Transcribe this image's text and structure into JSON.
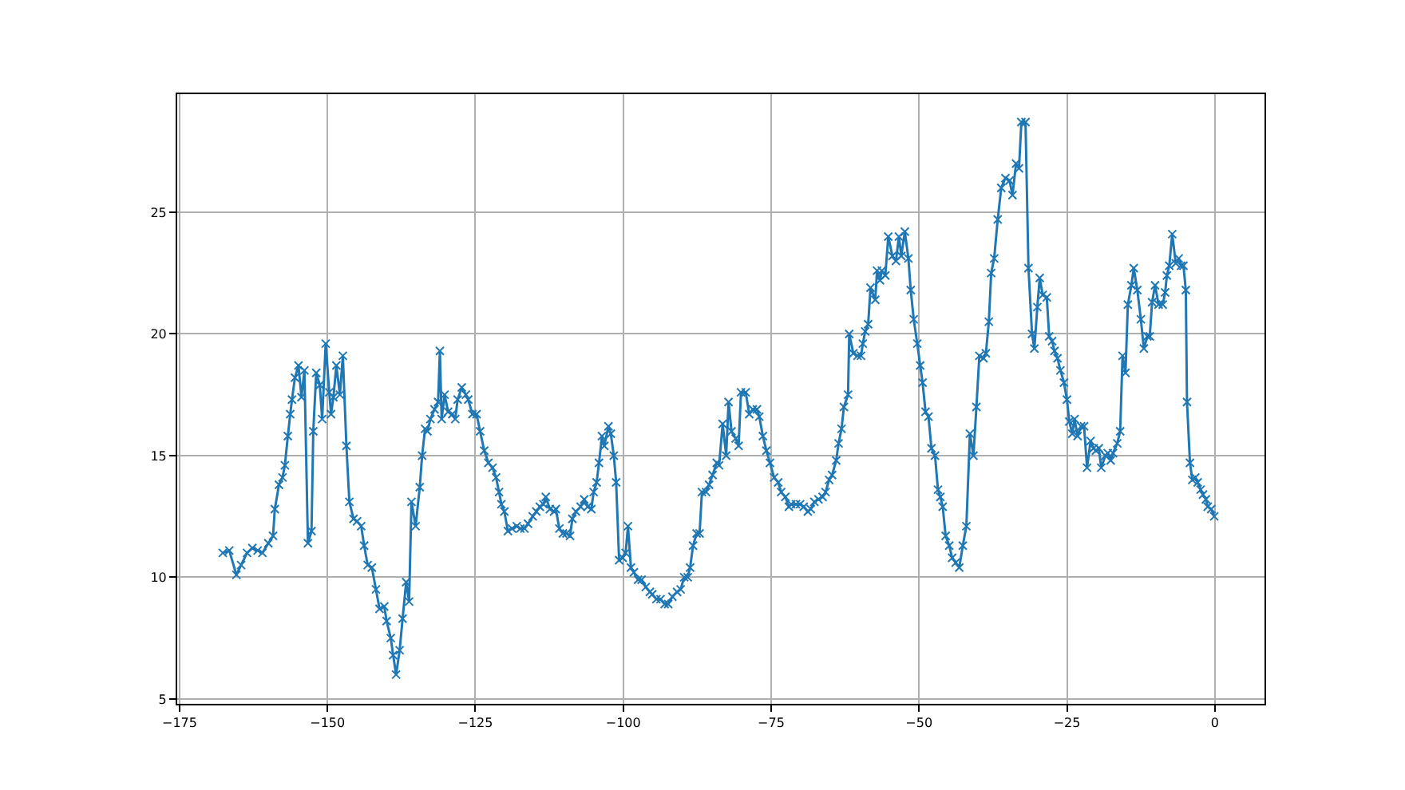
{
  "chart_data": {
    "type": "line",
    "x": [
      -167.7,
      -166.6,
      -165.4,
      -164.6,
      -163.6,
      -162.7,
      -161.8,
      -161.0,
      -160.0,
      -159.2,
      -158.9,
      -158.2,
      -157.6,
      -157.2,
      -156.7,
      -156.3,
      -156.0,
      -155.5,
      -154.9,
      -154.4,
      -153.9,
      -153.3,
      -152.7,
      -152.4,
      -151.9,
      -151.3,
      -150.9,
      -150.3,
      -149.7,
      -149.4,
      -149.0,
      -148.5,
      -147.9,
      -147.4,
      -146.8,
      -146.3,
      -145.6,
      -145.0,
      -144.3,
      -143.8,
      -143.2,
      -142.5,
      -141.8,
      -141.2,
      -140.4,
      -140.0,
      -139.3,
      -138.9,
      -138.4,
      -137.8,
      -137.3,
      -136.7,
      -136.2,
      -135.8,
      -135.1,
      -134.4,
      -134.0,
      -133.5,
      -133.1,
      -132.6,
      -131.9,
      -131.3,
      -131.0,
      -130.7,
      -130.2,
      -129.6,
      -128.9,
      -128.4,
      -128.0,
      -127.3,
      -126.6,
      -126.2,
      -125.5,
      -124.8,
      -124.2,
      -123.5,
      -122.8,
      -122.1,
      -121.5,
      -121.0,
      -120.6,
      -120.1,
      -119.5,
      -118.8,
      -118.0,
      -117.4,
      -116.7,
      -116.1,
      -115.3,
      -114.7,
      -114.1,
      -113.5,
      -113.1,
      -112.4,
      -111.7,
      -111.4,
      -110.8,
      -110.2,
      -109.6,
      -109.0,
      -108.6,
      -108.0,
      -107.2,
      -106.6,
      -106.0,
      -105.4,
      -105.0,
      -104.5,
      -104.1,
      -103.6,
      -103.2,
      -102.5,
      -102.1,
      -101.6,
      -101.2,
      -100.7,
      -100.1,
      -99.6,
      -99.2,
      -98.7,
      -98.2,
      -97.5,
      -96.9,
      -96.2,
      -95.5,
      -95.1,
      -94.4,
      -93.7,
      -93.0,
      -92.4,
      -91.7,
      -90.9,
      -90.3,
      -89.7,
      -89.1,
      -88.7,
      -88.2,
      -87.6,
      -87.1,
      -86.7,
      -86.0,
      -85.5,
      -84.9,
      -84.2,
      -83.8,
      -83.2,
      -82.6,
      -82.2,
      -81.7,
      -81.0,
      -80.5,
      -80.1,
      -79.3,
      -78.7,
      -78.1,
      -77.4,
      -77.0,
      -76.4,
      -75.8,
      -75.2,
      -74.5,
      -73.8,
      -73.3,
      -72.6,
      -72.0,
      -71.6,
      -70.8,
      -70.1,
      -69.5,
      -68.8,
      -68.3,
      -67.7,
      -67.0,
      -66.3,
      -65.8,
      -65.2,
      -64.7,
      -64.0,
      -63.6,
      -63.1,
      -62.7,
      -62.0,
      -61.8,
      -61.1,
      -60.4,
      -59.8,
      -59.5,
      -59.1,
      -58.6,
      -58.2,
      -57.4,
      -57.1,
      -56.6,
      -56.3,
      -55.7,
      -55.2,
      -54.5,
      -53.9,
      -53.4,
      -53.0,
      -52.4,
      -51.8,
      -51.4,
      -50.9,
      -50.3,
      -49.8,
      -49.4,
      -48.9,
      -48.4,
      -47.9,
      -47.3,
      -46.8,
      -46.4,
      -46.0,
      -45.5,
      -44.9,
      -44.4,
      -43.8,
      -43.2,
      -42.6,
      -42.0,
      -41.4,
      -40.8,
      -40.3,
      -39.8,
      -39.1,
      -38.7,
      -38.2,
      -37.8,
      -37.3,
      -36.7,
      -36.1,
      -35.4,
      -34.7,
      -34.2,
      -33.6,
      -33.1,
      -32.7,
      -32.0,
      -31.5,
      -30.9,
      -30.5,
      -30.0,
      -29.6,
      -29.1,
      -28.4,
      -28.0,
      -27.5,
      -27.1,
      -26.6,
      -26.1,
      -25.5,
      -25.0,
      -24.6,
      -24.1,
      -23.7,
      -23.2,
      -22.6,
      -22.1,
      -21.6,
      -21.0,
      -20.5,
      -20.1,
      -19.6,
      -19.2,
      -18.5,
      -18.1,
      -17.6,
      -17.2,
      -16.5,
      -16.0,
      -15.6,
      -15.1,
      -14.7,
      -14.1,
      -13.7,
      -13.1,
      -12.5,
      -12.0,
      -11.4,
      -11.0,
      -10.6,
      -10.1,
      -9.5,
      -8.8,
      -8.4,
      -8.1,
      -7.7,
      -7.2,
      -6.6,
      -6.1,
      -5.7,
      -5.3,
      -4.9,
      -4.7,
      -4.2,
      -3.8,
      -3.3,
      -2.9,
      -2.4,
      -2.0,
      -1.5,
      -1.2,
      -0.6,
      -0.1
    ],
    "series": [
      {
        "color": "#1f77b4",
        "values": [
          11.0,
          11.1,
          10.1,
          10.5,
          11.0,
          11.2,
          11.1,
          11.0,
          11.4,
          11.7,
          12.8,
          13.8,
          14.1,
          14.6,
          15.8,
          16.7,
          17.3,
          18.2,
          18.7,
          17.4,
          18.5,
          11.4,
          11.9,
          16.0,
          18.4,
          17.9,
          16.5,
          19.6,
          17.6,
          16.7,
          17.4,
          18.7,
          17.5,
          19.1,
          15.4,
          13.1,
          12.4,
          12.3,
          12.1,
          11.3,
          10.5,
          10.4,
          9.5,
          8.7,
          8.8,
          8.2,
          7.5,
          6.8,
          6.0,
          7.0,
          8.3,
          9.8,
          9.0,
          13.1,
          12.1,
          13.7,
          15.0,
          16.1,
          16.0,
          16.5,
          16.9,
          17.2,
          19.3,
          16.5,
          17.5,
          16.8,
          16.7,
          16.5,
          17.3,
          17.8,
          17.5,
          17.3,
          16.7,
          16.7,
          16.0,
          15.2,
          14.7,
          14.5,
          14.1,
          13.5,
          13.0,
          12.7,
          11.9,
          12.0,
          12.1,
          12.0,
          12.0,
          12.2,
          12.5,
          12.7,
          12.9,
          13.0,
          13.3,
          12.8,
          12.7,
          12.8,
          12.0,
          11.8,
          11.8,
          11.7,
          12.4,
          12.7,
          12.9,
          13.2,
          12.9,
          12.8,
          13.5,
          13.9,
          14.7,
          15.8,
          15.4,
          16.2,
          15.9,
          15.0,
          13.9,
          10.7,
          10.8,
          11.0,
          12.1,
          10.4,
          10.2,
          9.9,
          9.9,
          9.6,
          9.4,
          9.3,
          9.1,
          9.1,
          8.9,
          8.9,
          9.2,
          9.4,
          9.5,
          10.0,
          10.0,
          10.4,
          11.3,
          11.8,
          11.8,
          13.5,
          13.5,
          13.8,
          14.2,
          14.7,
          14.6,
          16.3,
          15.0,
          17.2,
          16.0,
          15.7,
          15.4,
          17.6,
          17.6,
          16.7,
          16.9,
          16.9,
          16.6,
          15.8,
          15.2,
          14.7,
          14.1,
          13.9,
          13.5,
          13.3,
          12.9,
          13.0,
          13.0,
          13.0,
          12.9,
          12.7,
          12.8,
          13.1,
          13.2,
          13.3,
          13.5,
          14.0,
          14.2,
          14.8,
          15.5,
          16.1,
          17.0,
          17.5,
          20.0,
          19.2,
          19.1,
          19.1,
          19.6,
          20.1,
          20.4,
          21.9,
          21.4,
          22.6,
          22.2,
          22.6,
          22.4,
          24.0,
          23.2,
          23.0,
          24.0,
          23.2,
          24.2,
          23.1,
          21.8,
          20.6,
          19.6,
          18.7,
          18.0,
          16.8,
          16.6,
          15.3,
          15.0,
          13.6,
          13.3,
          12.9,
          11.7,
          11.3,
          10.8,
          10.6,
          10.4,
          11.3,
          12.1,
          15.9,
          15.0,
          17.0,
          19.1,
          19.0,
          19.2,
          20.5,
          22.5,
          23.1,
          24.7,
          26.0,
          26.4,
          26.3,
          25.7,
          27.0,
          26.8,
          28.7,
          28.7,
          22.7,
          20.0,
          19.4,
          21.1,
          22.3,
          21.6,
          21.5,
          19.9,
          19.7,
          19.3,
          19.0,
          18.5,
          18.0,
          17.3,
          16.4,
          15.9,
          16.5,
          15.8,
          16.2,
          16.2,
          14.5,
          15.6,
          15.3,
          15.2,
          15.3,
          14.5,
          15.0,
          15.1,
          14.8,
          15.1,
          15.5,
          16.0,
          19.1,
          18.4,
          21.2,
          22.0,
          22.7,
          21.8,
          20.6,
          19.4,
          19.9,
          19.9,
          21.3,
          22.0,
          21.2,
          21.2,
          21.7,
          22.4,
          22.8,
          24.1,
          22.9,
          23.1,
          22.8,
          22.8,
          21.8,
          17.2,
          14.7,
          14.0,
          14.1,
          13.9,
          13.6,
          13.4,
          13.2,
          12.9,
          12.8,
          12.5
        ]
      }
    ],
    "xlim": [
      -175.4,
      8.4
    ],
    "ylim": [
      4.8,
      29.85
    ],
    "xticks": [
      {
        "value": -175,
        "label": "−175"
      },
      {
        "value": -150,
        "label": "−150"
      },
      {
        "value": -125,
        "label": "−125"
      },
      {
        "value": -100,
        "label": "−100"
      },
      {
        "value": -75,
        "label": "−75"
      },
      {
        "value": -50,
        "label": "−50"
      },
      {
        "value": -25,
        "label": "−25"
      },
      0
    ],
    "yticks": [
      5,
      10,
      15,
      20,
      25
    ],
    "grid": true,
    "marker": "cross",
    "line_style": "solid"
  }
}
